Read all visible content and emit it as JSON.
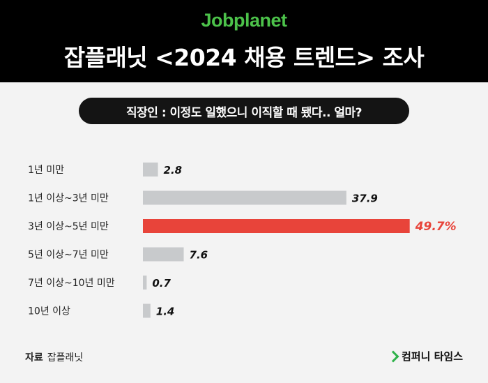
{
  "header": {
    "brand": "Jobplanet",
    "title": "잡플래닛 <2024 채용 트렌드> 조사"
  },
  "colors": {
    "brand_green": "#4cc24a",
    "bar_default": "#c8cacc",
    "bar_highlight": "#e8443a",
    "background": "#f3f3f3"
  },
  "chart_data": {
    "type": "bar",
    "orientation": "horizontal",
    "title": "직장인 : 이정도 일했으니 이직할 때 됐다.. 얼마?",
    "categories": [
      "1년 미만",
      "1년 이상~3년 미만",
      "3년 이상~5년 미만",
      "5년 이상~7년 미만",
      "7년 이상~10년 미만",
      "10년 이상"
    ],
    "values": [
      2.8,
      37.9,
      49.7,
      7.6,
      0.7,
      1.4
    ],
    "value_labels": [
      "2.8",
      "37.9",
      "49.7%",
      "7.6",
      "0.7",
      "1.4"
    ],
    "highlight_index": 2,
    "xlim": [
      0,
      50
    ],
    "grid": false
  },
  "footer": {
    "source_key": "자료",
    "source_value": "잡플래닛",
    "publisher": "컴퍼니 타임스"
  }
}
